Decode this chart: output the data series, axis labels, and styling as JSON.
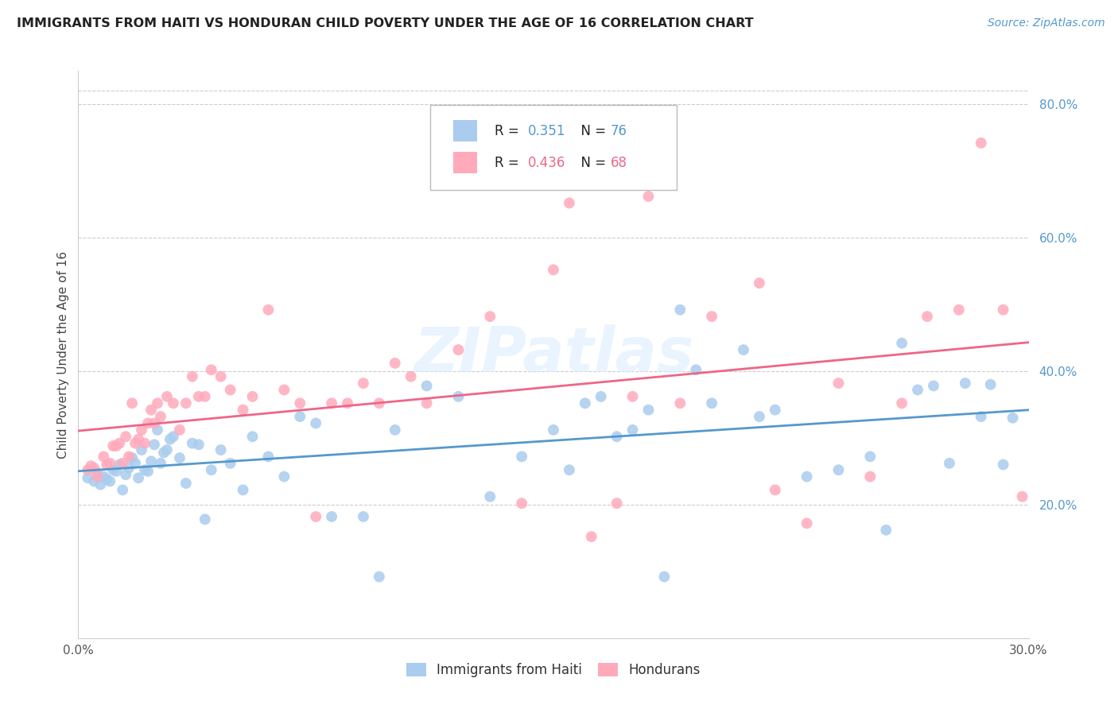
{
  "title": "IMMIGRANTS FROM HAITI VS HONDURAN CHILD POVERTY UNDER THE AGE OF 16 CORRELATION CHART",
  "source": "Source: ZipAtlas.com",
  "ylabel": "Child Poverty Under the Age of 16",
  "xlim": [
    0.0,
    0.3
  ],
  "ylim": [
    0.0,
    0.85
  ],
  "x_ticks": [
    0.0,
    0.05,
    0.1,
    0.15,
    0.2,
    0.25,
    0.3
  ],
  "x_tick_labels": [
    "0.0%",
    "",
    "",
    "",
    "",
    "",
    "30.0%"
  ],
  "y_ticks_right": [
    0.2,
    0.4,
    0.6,
    0.8
  ],
  "y_tick_labels_right": [
    "20.0%",
    "40.0%",
    "60.0%",
    "80.0%"
  ],
  "haiti_R": "0.351",
  "haiti_N": "76",
  "honduran_R": "0.436",
  "honduran_N": "68",
  "haiti_color": "#aaccee",
  "honduran_color": "#ffaabb",
  "haiti_line_color": "#5599cc",
  "honduran_line_color": "#ee6688",
  "watermark": "ZIPatlas",
  "background_color": "#ffffff",
  "grid_color": "#cccccc",
  "haiti_scatter_x": [
    0.003,
    0.005,
    0.006,
    0.007,
    0.008,
    0.009,
    0.01,
    0.011,
    0.012,
    0.013,
    0.014,
    0.015,
    0.016,
    0.017,
    0.018,
    0.019,
    0.02,
    0.021,
    0.022,
    0.023,
    0.024,
    0.025,
    0.026,
    0.027,
    0.028,
    0.029,
    0.03,
    0.032,
    0.034,
    0.036,
    0.038,
    0.04,
    0.042,
    0.045,
    0.048,
    0.052,
    0.055,
    0.06,
    0.065,
    0.07,
    0.075,
    0.08,
    0.09,
    0.095,
    0.1,
    0.11,
    0.12,
    0.13,
    0.14,
    0.15,
    0.155,
    0.16,
    0.165,
    0.17,
    0.175,
    0.18,
    0.185,
    0.19,
    0.195,
    0.2,
    0.21,
    0.215,
    0.22,
    0.23,
    0.24,
    0.25,
    0.255,
    0.26,
    0.265,
    0.27,
    0.275,
    0.28,
    0.285,
    0.288,
    0.292,
    0.295
  ],
  "haiti_scatter_y": [
    0.24,
    0.235,
    0.248,
    0.23,
    0.242,
    0.238,
    0.235,
    0.252,
    0.25,
    0.26,
    0.222,
    0.245,
    0.255,
    0.27,
    0.262,
    0.24,
    0.282,
    0.252,
    0.25,
    0.265,
    0.29,
    0.312,
    0.262,
    0.278,
    0.282,
    0.298,
    0.302,
    0.27,
    0.232,
    0.292,
    0.29,
    0.178,
    0.252,
    0.282,
    0.262,
    0.222,
    0.302,
    0.272,
    0.242,
    0.332,
    0.322,
    0.182,
    0.182,
    0.092,
    0.312,
    0.378,
    0.362,
    0.212,
    0.272,
    0.312,
    0.252,
    0.352,
    0.362,
    0.302,
    0.312,
    0.342,
    0.092,
    0.492,
    0.402,
    0.352,
    0.432,
    0.332,
    0.342,
    0.242,
    0.252,
    0.272,
    0.162,
    0.442,
    0.372,
    0.378,
    0.262,
    0.382,
    0.332,
    0.38,
    0.26,
    0.33
  ],
  "honduran_scatter_x": [
    0.003,
    0.004,
    0.005,
    0.006,
    0.008,
    0.009,
    0.01,
    0.011,
    0.012,
    0.013,
    0.014,
    0.015,
    0.016,
    0.017,
    0.018,
    0.019,
    0.02,
    0.021,
    0.022,
    0.023,
    0.024,
    0.025,
    0.026,
    0.028,
    0.03,
    0.032,
    0.034,
    0.036,
    0.038,
    0.04,
    0.042,
    0.045,
    0.048,
    0.052,
    0.055,
    0.06,
    0.065,
    0.07,
    0.075,
    0.08,
    0.085,
    0.09,
    0.095,
    0.1,
    0.105,
    0.11,
    0.12,
    0.13,
    0.14,
    0.15,
    0.155,
    0.162,
    0.17,
    0.175,
    0.18,
    0.19,
    0.2,
    0.215,
    0.22,
    0.23,
    0.24,
    0.25,
    0.26,
    0.268,
    0.278,
    0.285,
    0.292,
    0.298
  ],
  "honduran_scatter_y": [
    0.252,
    0.258,
    0.255,
    0.242,
    0.272,
    0.26,
    0.262,
    0.288,
    0.288,
    0.292,
    0.262,
    0.302,
    0.272,
    0.352,
    0.292,
    0.298,
    0.312,
    0.292,
    0.322,
    0.342,
    0.322,
    0.352,
    0.332,
    0.362,
    0.352,
    0.312,
    0.352,
    0.392,
    0.362,
    0.362,
    0.402,
    0.392,
    0.372,
    0.342,
    0.362,
    0.492,
    0.372,
    0.352,
    0.182,
    0.352,
    0.352,
    0.382,
    0.352,
    0.412,
    0.392,
    0.352,
    0.432,
    0.482,
    0.202,
    0.552,
    0.652,
    0.152,
    0.202,
    0.362,
    0.662,
    0.352,
    0.482,
    0.532,
    0.222,
    0.172,
    0.382,
    0.242,
    0.352,
    0.482,
    0.492,
    0.742,
    0.492,
    0.212
  ]
}
